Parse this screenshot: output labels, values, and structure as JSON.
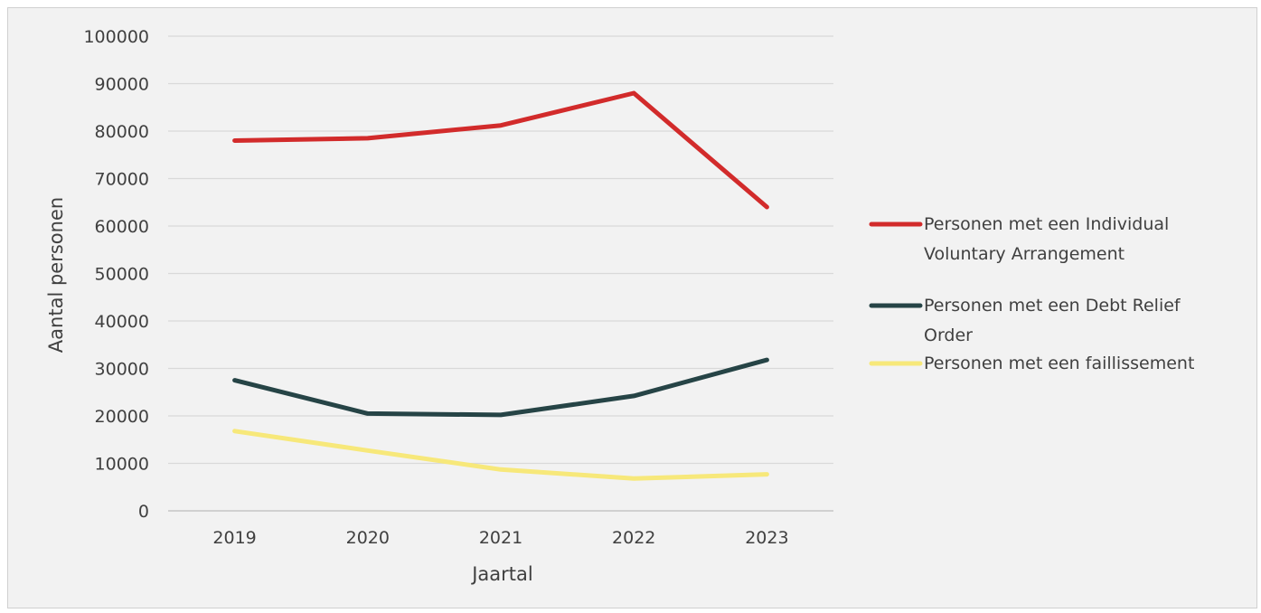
{
  "chart_data": {
    "type": "line",
    "title": "",
    "xlabel": "Jaartal",
    "ylabel": "Aantal personen",
    "categories": [
      "2019",
      "2020",
      "2021",
      "2022",
      "2023"
    ],
    "ylim": [
      0,
      100000
    ],
    "yticks": [
      "0",
      "10000",
      "20000",
      "30000",
      "40000",
      "50000",
      "60000",
      "70000",
      "80000",
      "90000",
      "100000"
    ],
    "grid": true,
    "legend_position": "right",
    "series": [
      {
        "name": "Personen met een Individual Voluntary Arrangement",
        "legend_lines": [
          "Personen met een Individual",
          "Voluntary Arrangement"
        ],
        "color": "#d22b2b",
        "values": [
          78000,
          78500,
          81200,
          88000,
          64000
        ]
      },
      {
        "name": "Personen met een Debt Relief Order",
        "legend_lines": [
          "Personen met een Debt Relief",
          "Order"
        ],
        "color": "#264446",
        "values": [
          27500,
          20500,
          20200,
          24200,
          31800
        ]
      },
      {
        "name": "Personen met een faillissement",
        "legend_lines": [
          "Personen met een faillissement"
        ],
        "color": "#f7e87a",
        "values": [
          16800,
          12700,
          8700,
          6800,
          7700
        ]
      }
    ]
  }
}
